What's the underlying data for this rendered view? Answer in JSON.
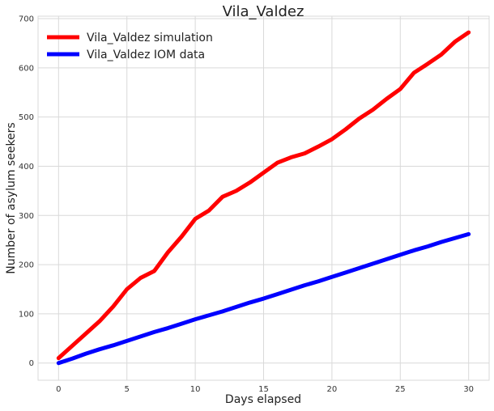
{
  "chart_data": {
    "type": "line",
    "title": "Vila_Valdez",
    "xlabel": "Days elapsed",
    "ylabel": "Number of asylum seekers",
    "xlim": [
      -1.5,
      31.5
    ],
    "ylim": [
      -35,
      705
    ],
    "xticks": [
      0,
      5,
      10,
      15,
      20,
      25,
      30
    ],
    "yticks": [
      0,
      100,
      200,
      300,
      400,
      500,
      600,
      700
    ],
    "grid": true,
    "legend_position": "top-left",
    "x": [
      0,
      1,
      2,
      3,
      4,
      5,
      6,
      7,
      8,
      9,
      10,
      11,
      12,
      13,
      14,
      15,
      16,
      17,
      18,
      19,
      20,
      21,
      22,
      23,
      24,
      25,
      26,
      27,
      28,
      29,
      30
    ],
    "series": [
      {
        "name": "Vila_Valdez simulation",
        "color": "#ff0000",
        "values": [
          10,
          35,
          60,
          85,
          115,
          150,
          173,
          187,
          225,
          257,
          293,
          310,
          338,
          350,
          367,
          387,
          407,
          418,
          426,
          440,
          455,
          475,
          497,
          515,
          537,
          557,
          590,
          608,
          627,
          653,
          672
        ]
      },
      {
        "name": "Vila_Valdez IOM data",
        "color": "#0000ff",
        "values": [
          0,
          9,
          19,
          28,
          36,
          45,
          54,
          63,
          71,
          80,
          89,
          97,
          105,
          114,
          123,
          131,
          140,
          149,
          158,
          166,
          175,
          184,
          193,
          202,
          211,
          220,
          229,
          237,
          246,
          254,
          262
        ]
      }
    ]
  }
}
